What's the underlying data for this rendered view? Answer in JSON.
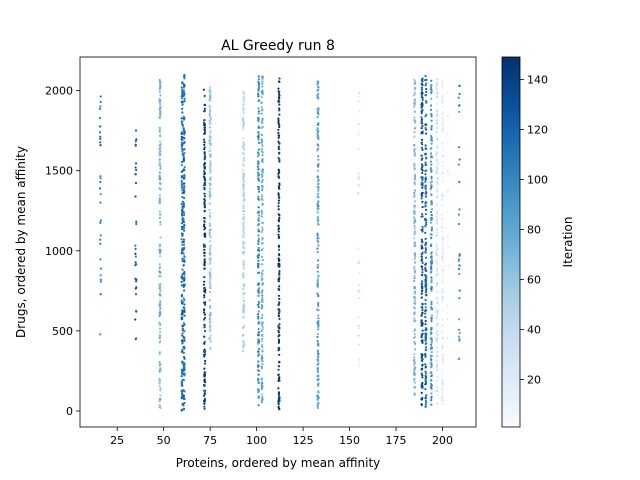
{
  "chart_data": {
    "type": "scatter",
    "title": "AL Greedy run 8",
    "xlabel": "Proteins, ordered by mean affinity",
    "ylabel": "Drugs, ordered by mean affinity",
    "xlim": [
      5,
      218
    ],
    "ylim": [
      -100,
      2210
    ],
    "x_ticks": [
      25,
      50,
      75,
      100,
      125,
      150,
      175,
      200
    ],
    "y_ticks": [
      0,
      500,
      1000,
      1500,
      2000
    ],
    "colorbar": {
      "label": "Iteration",
      "colormap": "Blues",
      "range": [
        1,
        149
      ],
      "ticks": [
        20,
        40,
        60,
        80,
        100,
        120,
        140
      ]
    },
    "colormap_stops": [
      "#f7fbff",
      "#deebf7",
      "#c6dbef",
      "#9ecae1",
      "#6baed6",
      "#4292c6",
      "#2171b5",
      "#08519c",
      "#08306b"
    ],
    "grid": false,
    "legend": "none",
    "columns": [
      {
        "x": 16,
        "y_min": 470,
        "y_max": 1970,
        "iteration": 105,
        "density": "sparse"
      },
      {
        "x": 35,
        "y_min": 440,
        "y_max": 1960,
        "iteration": 122,
        "density": "sparse"
      },
      {
        "x": 48,
        "y_min": 10,
        "y_max": 2070,
        "iteration": 70,
        "density": "dense"
      },
      {
        "x": 60,
        "y_min": 0,
        "y_max": 2110,
        "iteration": 115,
        "density": "dense"
      },
      {
        "x": 61,
        "y_min": 0,
        "y_max": 2100,
        "iteration": 112,
        "density": "dense"
      },
      {
        "x": 72,
        "y_min": 10,
        "y_max": 2010,
        "iteration": 140,
        "density": "dense"
      },
      {
        "x": 75,
        "y_min": 380,
        "y_max": 2030,
        "iteration": 55,
        "density": "dense"
      },
      {
        "x": 93,
        "y_min": 370,
        "y_max": 2000,
        "iteration": 45,
        "density": "dense"
      },
      {
        "x": 101,
        "y_min": 30,
        "y_max": 2100,
        "iteration": 98,
        "density": "dense"
      },
      {
        "x": 103,
        "y_min": 50,
        "y_max": 2090,
        "iteration": 75,
        "density": "dense"
      },
      {
        "x": 112,
        "y_min": 10,
        "y_max": 2080,
        "iteration": 145,
        "density": "dense"
      },
      {
        "x": 133,
        "y_min": 10,
        "y_max": 2080,
        "iteration": 85,
        "density": "dense"
      },
      {
        "x": 155,
        "y_min": 240,
        "y_max": 1990,
        "iteration": 25,
        "density": "sparse"
      },
      {
        "x": 185,
        "y_min": 100,
        "y_max": 2080,
        "iteration": 65,
        "density": "dense"
      },
      {
        "x": 189,
        "y_min": 20,
        "y_max": 2100,
        "iteration": 132,
        "density": "dense"
      },
      {
        "x": 191,
        "y_min": 20,
        "y_max": 2100,
        "iteration": 118,
        "density": "dense"
      },
      {
        "x": 194,
        "y_min": 30,
        "y_max": 2080,
        "iteration": 90,
        "density": "dense"
      },
      {
        "x": 197,
        "y_min": 40,
        "y_max": 2070,
        "iteration": 28,
        "density": "dense"
      },
      {
        "x": 200,
        "y_min": 40,
        "y_max": 2080,
        "iteration": 15,
        "density": "dense"
      },
      {
        "x": 203,
        "y_min": 380,
        "y_max": 2000,
        "iteration": 8,
        "density": "sparse"
      },
      {
        "x": 209,
        "y_min": 240,
        "y_max": 2070,
        "iteration": 95,
        "density": "sparse"
      }
    ]
  }
}
